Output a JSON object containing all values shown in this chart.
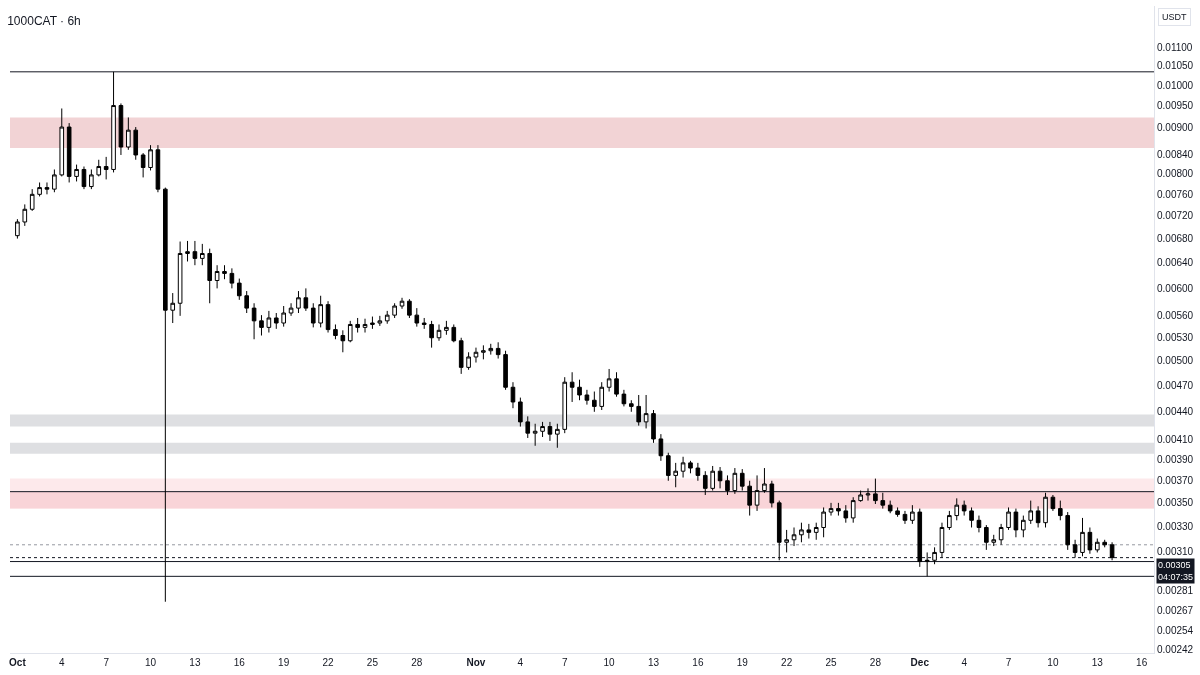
{
  "chart_data": {
    "type": "candlestick",
    "title": "1000CAT · 6h",
    "ylabel": "USDT",
    "color": "#000000",
    "log": true,
    "x": [
      "--10-01T00:00",
      "--10-01T12:00",
      "--10-02T00:00",
      "--10-02T12:00",
      "--10-03T00:00",
      "--10-03T12:00",
      "--10-04T00:00",
      "--10-04T12:00",
      "--10-05T00:00",
      "--10-05T12:00",
      "--10-06T00:00",
      "--10-06T12:00",
      "--10-07T00:00",
      "--10-07T12:00",
      "--10-08T00:00",
      "--10-08T12:00",
      "--10-09T00:00",
      "--10-09T12:00",
      "--10-10T00:00",
      "--10-10T12:00",
      "--10-11T00:00",
      "--10-11T12:00",
      "--10-12T00:00",
      "--10-12T12:00",
      "--10-13T00:00",
      "--10-13T12:00",
      "--10-14T00:00",
      "--10-14T12:00",
      "--10-15T00:00",
      "--10-15T12:00",
      "--10-16T00:00",
      "--10-16T12:00",
      "--10-17T00:00",
      "--10-17T12:00",
      "--10-18T00:00",
      "--10-18T12:00",
      "--10-19T00:00",
      "--10-19T12:00",
      "--10-20T00:00",
      "--10-20T12:00",
      "--10-21T00:00",
      "--10-21T12:00",
      "--10-22T00:00",
      "--10-22T12:00",
      "--10-23T00:00",
      "--10-23T12:00",
      "--10-24T00:00",
      "--10-24T12:00",
      "--10-25T00:00",
      "--10-25T12:00",
      "--10-26T00:00",
      "--10-26T12:00",
      "--10-27T00:00",
      "--10-27T12:00",
      "--10-28T00:00",
      "--10-28T12:00",
      "--10-29T00:00",
      "--10-29T12:00",
      "--10-30T00:00",
      "--10-30T12:00",
      "--10-31T00:00",
      "--10-31T12:00",
      "--11-01T00:00",
      "--11-01T12:00",
      "--11-02T00:00",
      "--11-02T12:00",
      "--11-03T00:00",
      "--11-03T12:00",
      "--11-04T00:00",
      "--11-04T12:00",
      "--11-05T00:00",
      "--11-05T12:00",
      "--11-06T00:00",
      "--11-06T12:00",
      "--11-07T00:00",
      "--11-07T12:00",
      "--11-08T00:00",
      "--11-08T12:00",
      "--11-09T00:00",
      "--11-09T12:00",
      "--11-10T00:00",
      "--11-10T12:00",
      "--11-11T00:00",
      "--11-11T12:00",
      "--11-12T00:00",
      "--11-12T12:00",
      "--11-13T00:00",
      "--11-13T12:00",
      "--11-14T00:00",
      "--11-14T12:00",
      "--11-15T00:00",
      "--11-15T12:00",
      "--11-16T00:00",
      "--11-16T12:00",
      "--11-17T00:00",
      "--11-17T12:00",
      "--11-18T00:00",
      "--11-18T12:00",
      "--11-19T00:00",
      "--11-19T12:00",
      "--11-20T00:00",
      "--11-20T12:00",
      "--11-21T00:00",
      "--11-21T12:00",
      "--11-22T00:00",
      "--11-22T12:00",
      "--11-23T00:00",
      "--11-23T12:00",
      "--11-24T00:00",
      "--11-24T12:00",
      "--11-25T00:00",
      "--11-25T12:00",
      "--11-26T00:00",
      "--11-26T12:00",
      "--11-27T00:00",
      "--11-27T12:00",
      "--11-28T00:00",
      "--11-28T12:00",
      "--11-29T00:00",
      "--11-29T12:00",
      "--11-30T00:00",
      "--11-30T12:00",
      "--12-01T00:00",
      "--12-01T12:00",
      "--12-02T00:00",
      "--12-02T12:00",
      "--12-03T00:00",
      "--12-03T12:00",
      "--12-04T00:00",
      "--12-04T12:00",
      "--12-05T00:00",
      "--12-05T12:00",
      "--12-06T00:00",
      "--12-06T12:00",
      "--12-07T00:00",
      "--12-07T12:00",
      "--12-08T00:00",
      "--12-08T12:00",
      "--12-09T00:00",
      "--12-09T12:00",
      "--12-10T00:00",
      "--12-10T12:00",
      "--12-11T00:00",
      "--12-11T12:00",
      "--12-12T00:00",
      "--12-12T12:00",
      "--12-13T00:00",
      "--12-13T12:00",
      "--12-14T00:00"
    ],
    "ohlc": [
      [
        0.00685,
        0.00714,
        0.0068,
        0.00709
      ],
      [
        0.00709,
        0.00741,
        0.00702,
        0.00732
      ],
      [
        0.00732,
        0.0077,
        0.00729,
        0.0076
      ],
      [
        0.0076,
        0.00783,
        0.00756,
        0.00773
      ],
      [
        0.00773,
        0.00783,
        0.0076,
        0.0077
      ],
      [
        0.0077,
        0.00809,
        0.00764,
        0.00798
      ],
      [
        0.00798,
        0.00943,
        0.00795,
        0.009
      ],
      [
        0.009,
        0.00909,
        0.00783,
        0.00795
      ],
      [
        0.00795,
        0.00819,
        0.00785,
        0.00809
      ],
      [
        0.00809,
        0.00815,
        0.0077,
        0.00775
      ],
      [
        0.00775,
        0.00809,
        0.0077,
        0.00798
      ],
      [
        0.00798,
        0.00829,
        0.00795,
        0.00815
      ],
      [
        0.00815,
        0.00835,
        0.00789,
        0.00809
      ],
      [
        0.00809,
        0.01034,
        0.00803,
        0.0095
      ],
      [
        0.0095,
        0.00955,
        0.00839,
        0.00856
      ],
      [
        0.00856,
        0.00922,
        0.0085,
        0.00893
      ],
      [
        0.00893,
        0.009,
        0.00829,
        0.00839
      ],
      [
        0.00839,
        0.00843,
        0.00793,
        0.00813
      ],
      [
        0.00813,
        0.0086,
        0.00807,
        0.0085
      ],
      [
        0.0085,
        0.0086,
        0.00764,
        0.0077
      ],
      [
        0.0077,
        0.00773,
        0.00273,
        0.00568
      ],
      [
        0.00568,
        0.00593,
        0.0055,
        0.00578
      ],
      [
        0.00578,
        0.00675,
        0.0056,
        0.00655
      ],
      [
        0.00655,
        0.00676,
        0.00642,
        0.00658
      ],
      [
        0.00658,
        0.00676,
        0.00636,
        0.00647
      ],
      [
        0.00647,
        0.00671,
        0.00636,
        0.00655
      ],
      [
        0.00655,
        0.00663,
        0.00578,
        0.00612
      ],
      [
        0.00612,
        0.00636,
        0.006,
        0.00626
      ],
      [
        0.00626,
        0.00636,
        0.00614,
        0.00623
      ],
      [
        0.00623,
        0.00631,
        0.006,
        0.00608
      ],
      [
        0.00608,
        0.00615,
        0.00583,
        0.00589
      ],
      [
        0.00589,
        0.00596,
        0.00564,
        0.00571
      ],
      [
        0.00571,
        0.00578,
        0.00528,
        0.00553
      ],
      [
        0.00553,
        0.00561,
        0.00533,
        0.00544
      ],
      [
        0.00544,
        0.00567,
        0.00537,
        0.00557
      ],
      [
        0.00557,
        0.00564,
        0.00542,
        0.0055
      ],
      [
        0.0055,
        0.00574,
        0.00545,
        0.00564
      ],
      [
        0.00564,
        0.00578,
        0.0056,
        0.00571
      ],
      [
        0.00571,
        0.00596,
        0.00564,
        0.00586
      ],
      [
        0.00586,
        0.006,
        0.00567,
        0.00571
      ],
      [
        0.00571,
        0.00578,
        0.00544,
        0.0055
      ],
      [
        0.0055,
        0.00589,
        0.00544,
        0.00576
      ],
      [
        0.00576,
        0.00581,
        0.00537,
        0.00541
      ],
      [
        0.00541,
        0.00548,
        0.00528,
        0.00533
      ],
      [
        0.00533,
        0.0054,
        0.00511,
        0.00526
      ],
      [
        0.00526,
        0.00553,
        0.00524,
        0.00548
      ],
      [
        0.00548,
        0.00557,
        0.00537,
        0.00544
      ],
      [
        0.00544,
        0.00556,
        0.00537,
        0.00548
      ],
      [
        0.00548,
        0.00559,
        0.00542,
        0.0055
      ],
      [
        0.0055,
        0.0056,
        0.00546,
        0.00553
      ],
      [
        0.00553,
        0.00567,
        0.00549,
        0.00561
      ],
      [
        0.00561,
        0.00578,
        0.00557,
        0.00574
      ],
      [
        0.00574,
        0.00586,
        0.0057,
        0.00581
      ],
      [
        0.00581,
        0.00584,
        0.00557,
        0.00561
      ],
      [
        0.00561,
        0.00571,
        0.00545,
        0.0055
      ],
      [
        0.0055,
        0.00557,
        0.00542,
        0.00548
      ],
      [
        0.00548,
        0.00553,
        0.00517,
        0.0053
      ],
      [
        0.0053,
        0.00548,
        0.00526,
        0.0054
      ],
      [
        0.0054,
        0.00553,
        0.00534,
        0.00544
      ],
      [
        0.00544,
        0.00548,
        0.00524,
        0.00526
      ],
      [
        0.00526,
        0.0053,
        0.00484,
        0.00492
      ],
      [
        0.00492,
        0.00511,
        0.00489,
        0.00505
      ],
      [
        0.00505,
        0.00517,
        0.00498,
        0.00511
      ],
      [
        0.00511,
        0.0052,
        0.00502,
        0.00513
      ],
      [
        0.00513,
        0.00522,
        0.00508,
        0.00516
      ],
      [
        0.00516,
        0.00524,
        0.00503,
        0.00508
      ],
      [
        0.00508,
        0.00513,
        0.00465,
        0.00468
      ],
      [
        0.00468,
        0.00474,
        0.00444,
        0.00451
      ],
      [
        0.00451,
        0.00456,
        0.00424,
        0.00429
      ],
      [
        0.00429,
        0.00435,
        0.00412,
        0.00417
      ],
      [
        0.00417,
        0.00427,
        0.00404,
        0.00419
      ],
      [
        0.00419,
        0.00429,
        0.00413,
        0.00424
      ],
      [
        0.00424,
        0.00429,
        0.00409,
        0.00416
      ],
      [
        0.00416,
        0.00427,
        0.00402,
        0.00421
      ],
      [
        0.00421,
        0.0048,
        0.00417,
        0.00474
      ],
      [
        0.00474,
        0.00486,
        0.00451,
        0.00468
      ],
      [
        0.00468,
        0.00477,
        0.00453,
        0.00459
      ],
      [
        0.00459,
        0.00465,
        0.00448,
        0.00453
      ],
      [
        0.00453,
        0.00463,
        0.0044,
        0.00446
      ],
      [
        0.00446,
        0.00474,
        0.00442,
        0.00468
      ],
      [
        0.00468,
        0.0049,
        0.00463,
        0.00478
      ],
      [
        0.00478,
        0.00486,
        0.00457,
        0.0046
      ],
      [
        0.0046,
        0.00465,
        0.00446,
        0.00449
      ],
      [
        0.00449,
        0.00453,
        0.0044,
        0.00446
      ],
      [
        0.00446,
        0.00459,
        0.00425,
        0.00429
      ],
      [
        0.00429,
        0.00459,
        0.00422,
        0.00438
      ],
      [
        0.00438,
        0.00442,
        0.00407,
        0.00411
      ],
      [
        0.00411,
        0.00416,
        0.00389,
        0.00394
      ],
      [
        0.00394,
        0.00397,
        0.0037,
        0.00375
      ],
      [
        0.00375,
        0.00387,
        0.00364,
        0.00379
      ],
      [
        0.00379,
        0.00393,
        0.00373,
        0.00387
      ],
      [
        0.00387,
        0.00389,
        0.00377,
        0.00382
      ],
      [
        0.00382,
        0.00387,
        0.0037,
        0.00375
      ],
      [
        0.00375,
        0.00379,
        0.00357,
        0.00363
      ],
      [
        0.00363,
        0.00384,
        0.00361,
        0.00379
      ],
      [
        0.00379,
        0.00383,
        0.00363,
        0.0037
      ],
      [
        0.0037,
        0.00375,
        0.00357,
        0.00361
      ],
      [
        0.00361,
        0.00382,
        0.00358,
        0.00377
      ],
      [
        0.00377,
        0.00381,
        0.00361,
        0.00365
      ],
      [
        0.00365,
        0.0037,
        0.00339,
        0.00348
      ],
      [
        0.00348,
        0.00375,
        0.00343,
        0.00361
      ],
      [
        0.00361,
        0.00382,
        0.00359,
        0.00367
      ],
      [
        0.00367,
        0.0037,
        0.00346,
        0.0035
      ],
      [
        0.0035,
        0.00352,
        0.00303,
        0.00317
      ],
      [
        0.00317,
        0.00327,
        0.00309,
        0.00319
      ],
      [
        0.00319,
        0.00329,
        0.00314,
        0.00323
      ],
      [
        0.00323,
        0.00333,
        0.00317,
        0.00327
      ],
      [
        0.00327,
        0.00332,
        0.0032,
        0.00325
      ],
      [
        0.00325,
        0.00333,
        0.00319,
        0.00329
      ],
      [
        0.00329,
        0.00346,
        0.00321,
        0.00342
      ],
      [
        0.00342,
        0.0035,
        0.00339,
        0.00345
      ],
      [
        0.00345,
        0.0035,
        0.00339,
        0.00343
      ],
      [
        0.00343,
        0.00348,
        0.00333,
        0.00337
      ],
      [
        0.00337,
        0.00355,
        0.00333,
        0.00352
      ],
      [
        0.00352,
        0.00361,
        0.00351,
        0.00357
      ],
      [
        0.00357,
        0.00363,
        0.00352,
        0.00358
      ],
      [
        0.00358,
        0.00372,
        0.00349,
        0.00352
      ],
      [
        0.00352,
        0.00359,
        0.00345,
        0.00348
      ],
      [
        0.00348,
        0.00352,
        0.00341,
        0.00343
      ],
      [
        0.00343,
        0.00346,
        0.00338,
        0.0034
      ],
      [
        0.0034,
        0.00343,
        0.00332,
        0.00335
      ],
      [
        0.00335,
        0.00348,
        0.00332,
        0.00342
      ],
      [
        0.00342,
        0.00345,
        0.00298,
        0.00302
      ],
      [
        0.00302,
        0.00309,
        0.00291,
        0.00303
      ],
      [
        0.00303,
        0.00313,
        0.003,
        0.00309
      ],
      [
        0.00309,
        0.00333,
        0.00305,
        0.00329
      ],
      [
        0.00329,
        0.00343,
        0.00327,
        0.00339
      ],
      [
        0.00339,
        0.00354,
        0.00335,
        0.00348
      ],
      [
        0.00348,
        0.00352,
        0.00339,
        0.00343
      ],
      [
        0.00343,
        0.00346,
        0.00329,
        0.00335
      ],
      [
        0.00335,
        0.00339,
        0.00325,
        0.00329
      ],
      [
        0.00329,
        0.00331,
        0.00311,
        0.00317
      ],
      [
        0.00317,
        0.00323,
        0.00314,
        0.00319
      ],
      [
        0.00319,
        0.00332,
        0.00315,
        0.00329
      ],
      [
        0.00329,
        0.00346,
        0.00327,
        0.00342
      ],
      [
        0.00342,
        0.00345,
        0.00321,
        0.00327
      ],
      [
        0.00327,
        0.00339,
        0.00321,
        0.00335
      ],
      [
        0.00335,
        0.00352,
        0.00332,
        0.00343
      ],
      [
        0.00343,
        0.00347,
        0.00329,
        0.00333
      ],
      [
        0.00333,
        0.00359,
        0.00329,
        0.00355
      ],
      [
        0.00355,
        0.00357,
        0.00343,
        0.00345
      ],
      [
        0.00345,
        0.00352,
        0.00335,
        0.00339
      ],
      [
        0.00339,
        0.00342,
        0.00311,
        0.00315
      ],
      [
        0.00315,
        0.00319,
        0.00305,
        0.00309
      ],
      [
        0.00309,
        0.00337,
        0.00306,
        0.00325
      ],
      [
        0.00325,
        0.00329,
        0.00308,
        0.00311
      ],
      [
        0.00311,
        0.0032,
        0.00309,
        0.00317
      ],
      [
        0.00317,
        0.00319,
        0.00313,
        0.00315
      ],
      [
        0.00315,
        0.00317,
        0.00303,
        0.00305
      ]
    ],
    "xlim": [
      "--09-30T12:00",
      "--12-16T20:00"
    ],
    "xticks": [
      {
        "value": "--10-01",
        "label": "Oct"
      },
      {
        "value": "--10-04",
        "label": "4"
      },
      {
        "value": "--10-07",
        "label": "7"
      },
      {
        "value": "--10-10",
        "label": "10"
      },
      {
        "value": "--10-13",
        "label": "13"
      },
      {
        "value": "--10-16",
        "label": "16"
      },
      {
        "value": "--10-19",
        "label": "19"
      },
      {
        "value": "--10-22",
        "label": "22"
      },
      {
        "value": "--10-25",
        "label": "25"
      },
      {
        "value": "--10-28",
        "label": "28"
      },
      {
        "value": "--11-01",
        "label": "Nov"
      },
      {
        "value": "--11-04",
        "label": "4"
      },
      {
        "value": "--11-07",
        "label": "7"
      },
      {
        "value": "--11-10",
        "label": "10"
      },
      {
        "value": "--11-13",
        "label": "13"
      },
      {
        "value": "--11-16",
        "label": "16"
      },
      {
        "value": "--11-19",
        "label": "19"
      },
      {
        "value": "--11-22",
        "label": "22"
      },
      {
        "value": "--11-25",
        "label": "25"
      },
      {
        "value": "--11-28",
        "label": "28"
      },
      {
        "value": "--12-01",
        "label": "Dec"
      },
      {
        "value": "--12-04",
        "label": "4"
      },
      {
        "value": "--12-07",
        "label": "7"
      },
      {
        "value": "--12-10",
        "label": "10"
      },
      {
        "value": "--12-13",
        "label": "13"
      },
      {
        "value": "--12-16",
        "label": "16"
      }
    ],
    "ylim": [
      0.0024,
      0.0122
    ],
    "yticks": [
      {
        "value": 0.011,
        "label": "0.01100"
      },
      {
        "value": 0.0105,
        "label": "0.01050"
      },
      {
        "value": 0.01,
        "label": "0.01000"
      },
      {
        "value": 0.0095,
        "label": "0.00950"
      },
      {
        "value": 0.009,
        "label": "0.00900"
      },
      {
        "value": 0.0084,
        "label": "0.00840"
      },
      {
        "value": 0.008,
        "label": "0.00800"
      },
      {
        "value": 0.0076,
        "label": "0.00760"
      },
      {
        "value": 0.0072,
        "label": "0.00720"
      },
      {
        "value": 0.0068,
        "label": "0.00680"
      },
      {
        "value": 0.0064,
        "label": "0.00640"
      },
      {
        "value": 0.006,
        "label": "0.00600"
      },
      {
        "value": 0.0056,
        "label": "0.00560"
      },
      {
        "value": 0.0053,
        "label": "0.00530"
      },
      {
        "value": 0.005,
        "label": "0.00500"
      },
      {
        "value": 0.0047,
        "label": "0.00470"
      },
      {
        "value": 0.0044,
        "label": "0.00440"
      },
      {
        "value": 0.0041,
        "label": "0.00410"
      },
      {
        "value": 0.0039,
        "label": "0.00390"
      },
      {
        "value": 0.0037,
        "label": "0.00370"
      },
      {
        "value": 0.0035,
        "label": "0.00350"
      },
      {
        "value": 0.0033,
        "label": "0.00330"
      },
      {
        "value": 0.0031,
        "label": "0.00310"
      },
      {
        "value": 0.00281,
        "label": "0.00281"
      },
      {
        "value": 0.00267,
        "label": "0.00267"
      },
      {
        "value": 0.00254,
        "label": "0.00254"
      },
      {
        "value": 0.00242,
        "label": "0.00242"
      }
    ],
    "bands": [
      {
        "axis": "y",
        "from": 0.00854,
        "to": 0.00922,
        "color": "#f2d3d5"
      },
      {
        "axis": "y",
        "from": 0.00424,
        "to": 0.00437,
        "color": "#dedfe2"
      },
      {
        "axis": "y",
        "from": 0.00396,
        "to": 0.00407,
        "color": "#dedfe2"
      },
      {
        "axis": "y",
        "from": 0.00345,
        "to": 0.00372,
        "color": "#fde9eb"
      },
      {
        "axis": "y",
        "from": 0.00345,
        "to": 0.0036,
        "color": "#f9d4d8"
      }
    ],
    "ref_lines": [
      {
        "axis": "y",
        "value": 0.01034,
        "color": "#131722"
      },
      {
        "axis": "y",
        "value": 0.0036,
        "color": "#131722"
      },
      {
        "axis": "y",
        "value": 0.00302,
        "color": "#131722"
      },
      {
        "axis": "y",
        "value": 0.00291,
        "color": "#131722"
      },
      {
        "axis": "y",
        "value": 0.00315,
        "color": "#9598a1",
        "line_style": "dotted"
      },
      {
        "axis": "y",
        "value": 0.00305,
        "label": "0.00305\n04:07:35",
        "color": "#131722",
        "line_style": "dotted"
      }
    ]
  }
}
